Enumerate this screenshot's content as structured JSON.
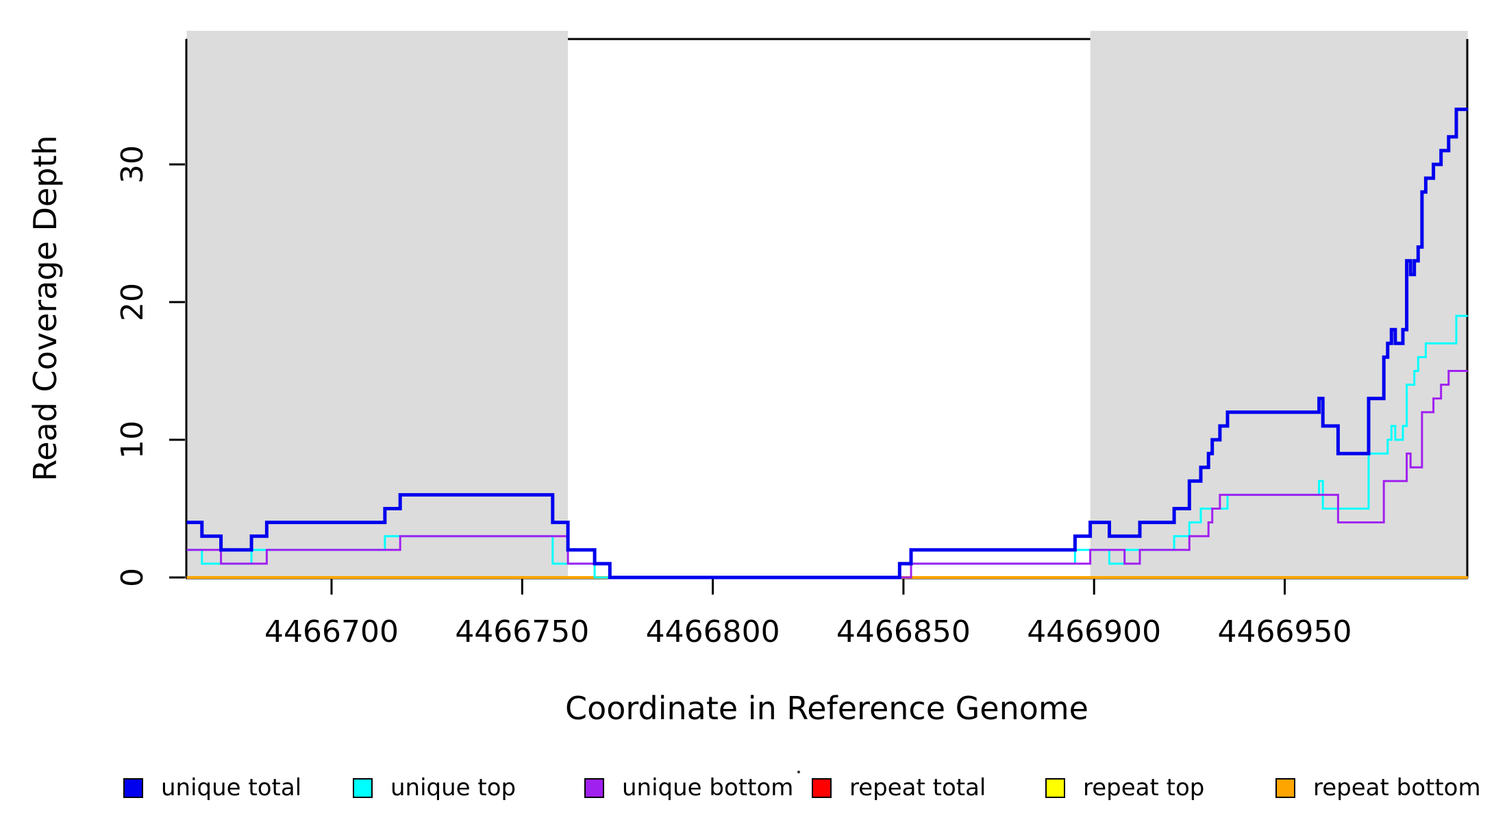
{
  "chart_data": {
    "type": "line",
    "subtype": "step-after",
    "title": "",
    "xlabel": "Coordinate in Reference Genome",
    "ylabel": "Read Coverage Depth",
    "x_range": [
      4466662,
      4466998
    ],
    "y_range": [
      0,
      39
    ],
    "x_ticks": [
      4466700,
      4466750,
      4466800,
      4466850,
      4466900,
      4466950
    ],
    "y_ticks": [
      0,
      10,
      20,
      30
    ],
    "grid": false,
    "shade_color": "#DCDCDC",
    "shaded_regions": [
      {
        "x_start": 4466662,
        "x_end": 4466762
      },
      {
        "x_start": 4466899,
        "x_end": 4466998
      }
    ],
    "series": [
      {
        "name": "unique total",
        "color": "#0000EE",
        "width": 5,
        "steps": [
          [
            4466662,
            4
          ],
          [
            4466666,
            3
          ],
          [
            4466671,
            2
          ],
          [
            4466679,
            3
          ],
          [
            4466683,
            4
          ],
          [
            4466714,
            5
          ],
          [
            4466718,
            6
          ],
          [
            4466758,
            4
          ],
          [
            4466762,
            2
          ],
          [
            4466769,
            1
          ],
          [
            4466773,
            0
          ],
          [
            4466849,
            1
          ],
          [
            4466852,
            2
          ],
          [
            4466895,
            3
          ],
          [
            4466899,
            4
          ],
          [
            4466904,
            3
          ],
          [
            4466912,
            4
          ],
          [
            4466921,
            5
          ],
          [
            4466925,
            7
          ],
          [
            4466928,
            8
          ],
          [
            4466930,
            9
          ],
          [
            4466931,
            10
          ],
          [
            4466933,
            11
          ],
          [
            4466935,
            12
          ],
          [
            4466959,
            13
          ],
          [
            4466960,
            11
          ],
          [
            4466964,
            9
          ],
          [
            4466972,
            13
          ],
          [
            4466976,
            16
          ],
          [
            4466977,
            17
          ],
          [
            4466978,
            18
          ],
          [
            4466979,
            17
          ],
          [
            4466981,
            18
          ],
          [
            4466982,
            23
          ],
          [
            4466983,
            22
          ],
          [
            4466984,
            23
          ],
          [
            4466985,
            24
          ],
          [
            4466986,
            28
          ],
          [
            4466987,
            29
          ],
          [
            4466989,
            30
          ],
          [
            4466991,
            31
          ],
          [
            4466993,
            32
          ],
          [
            4466995,
            34
          ],
          [
            4466998,
            34
          ]
        ]
      },
      {
        "name": "unique top",
        "color": "#00FFFF",
        "width": 3,
        "steps": [
          [
            4466662,
            2
          ],
          [
            4466666,
            1
          ],
          [
            4466679,
            2
          ],
          [
            4466714,
            3
          ],
          [
            4466758,
            1
          ],
          [
            4466769,
            0
          ],
          [
            4466849,
            1
          ],
          [
            4466895,
            2
          ],
          [
            4466904,
            1
          ],
          [
            4466908,
            2
          ],
          [
            4466921,
            3
          ],
          [
            4466925,
            4
          ],
          [
            4466928,
            5
          ],
          [
            4466935,
            6
          ],
          [
            4466959,
            7
          ],
          [
            4466960,
            5
          ],
          [
            4466972,
            9
          ],
          [
            4466977,
            10
          ],
          [
            4466978,
            11
          ],
          [
            4466979,
            10
          ],
          [
            4466981,
            11
          ],
          [
            4466982,
            14
          ],
          [
            4466984,
            15
          ],
          [
            4466985,
            16
          ],
          [
            4466987,
            17
          ],
          [
            4466995,
            19
          ],
          [
            4466998,
            19
          ]
        ]
      },
      {
        "name": "unique bottom",
        "color": "#A020F0",
        "width": 3,
        "steps": [
          [
            4466662,
            2
          ],
          [
            4466671,
            1
          ],
          [
            4466683,
            2
          ],
          [
            4466718,
            3
          ],
          [
            4466762,
            1
          ],
          [
            4466773,
            0
          ],
          [
            4466852,
            1
          ],
          [
            4466899,
            2
          ],
          [
            4466908,
            1
          ],
          [
            4466912,
            2
          ],
          [
            4466925,
            3
          ],
          [
            4466930,
            4
          ],
          [
            4466931,
            5
          ],
          [
            4466933,
            6
          ],
          [
            4466964,
            4
          ],
          [
            4466976,
            7
          ],
          [
            4466982,
            9
          ],
          [
            4466983,
            8
          ],
          [
            4466986,
            12
          ],
          [
            4466989,
            13
          ],
          [
            4466991,
            14
          ],
          [
            4466993,
            15
          ],
          [
            4466998,
            15
          ]
        ]
      },
      {
        "name": "repeat total",
        "color": "#FF0000",
        "width": 3,
        "steps": [
          [
            4466662,
            0
          ],
          [
            4466998,
            0
          ]
        ]
      },
      {
        "name": "repeat top",
        "color": "#FFFF00",
        "width": 3,
        "steps": [
          [
            4466662,
            0
          ],
          [
            4466998,
            0
          ]
        ]
      },
      {
        "name": "repeat bottom",
        "color": "#FFA500",
        "width": 4,
        "steps": [
          [
            4466662,
            0
          ],
          [
            4466998,
            0
          ]
        ]
      }
    ],
    "draw_order": [
      "repeat total",
      "repeat top",
      "repeat bottom",
      "unique top",
      "unique bottom",
      "unique total"
    ],
    "legend": {
      "position": "bottom",
      "items": [
        {
          "label": "unique total",
          "color": "#0000EE"
        },
        {
          "label": "unique top",
          "color": "#00FFFF"
        },
        {
          "label": "unique bottom",
          "color": "#A020F0"
        },
        {
          "label": "repeat total",
          "color": "#FF0000"
        },
        {
          "label": "repeat top",
          "color": "#FFFF00"
        },
        {
          "label": "repeat bottom",
          "color": "#FFA500"
        }
      ]
    }
  }
}
